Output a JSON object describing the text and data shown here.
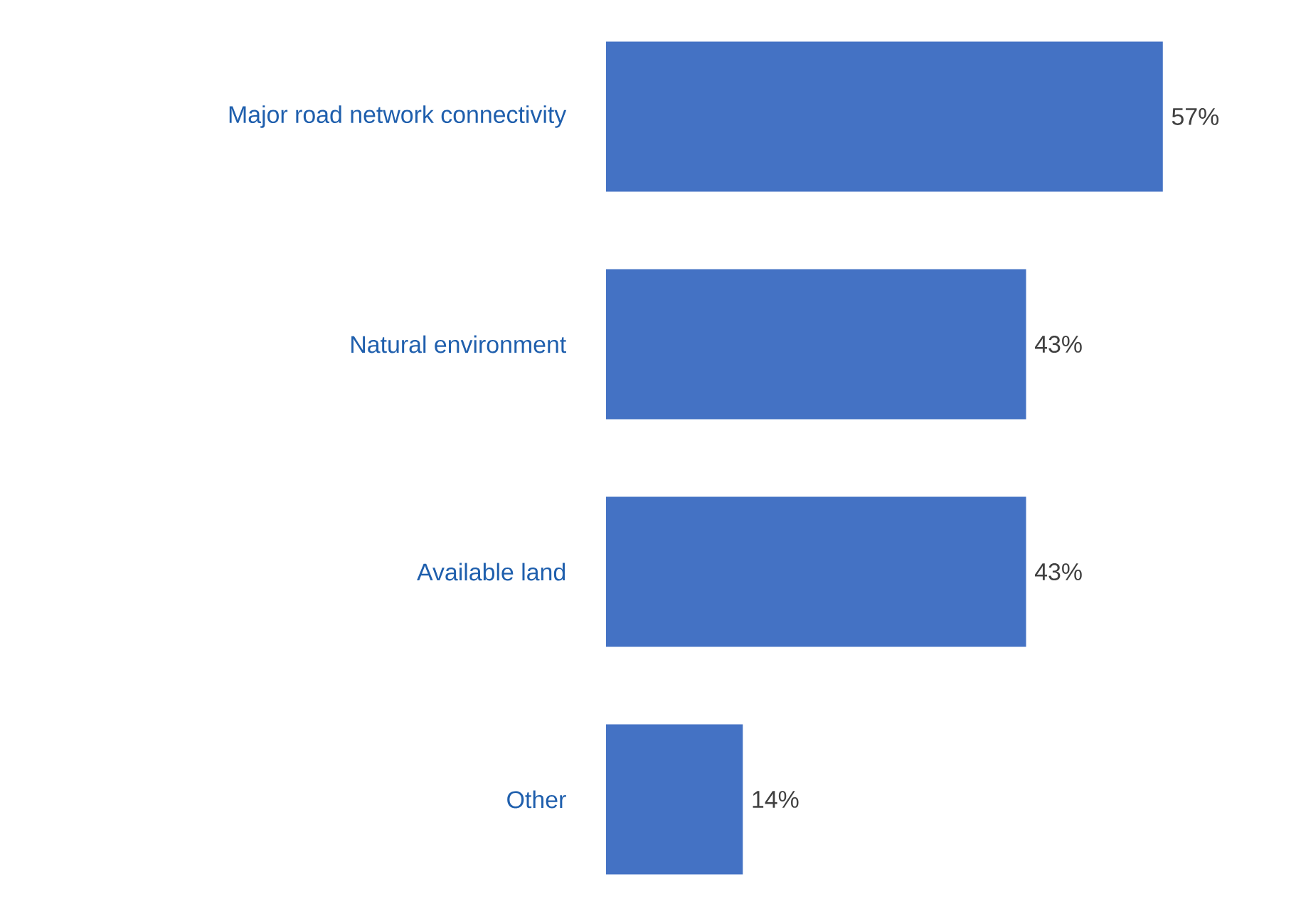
{
  "chart_data": {
    "type": "bar",
    "orientation": "horizontal",
    "categories": [
      "Major road network connectivity",
      "Natural environment",
      "Available land",
      "Other"
    ],
    "values": [
      57,
      43,
      43,
      14
    ],
    "value_labels": [
      "57%",
      "43%",
      "43%",
      "14%"
    ],
    "color": "#4472c4"
  }
}
